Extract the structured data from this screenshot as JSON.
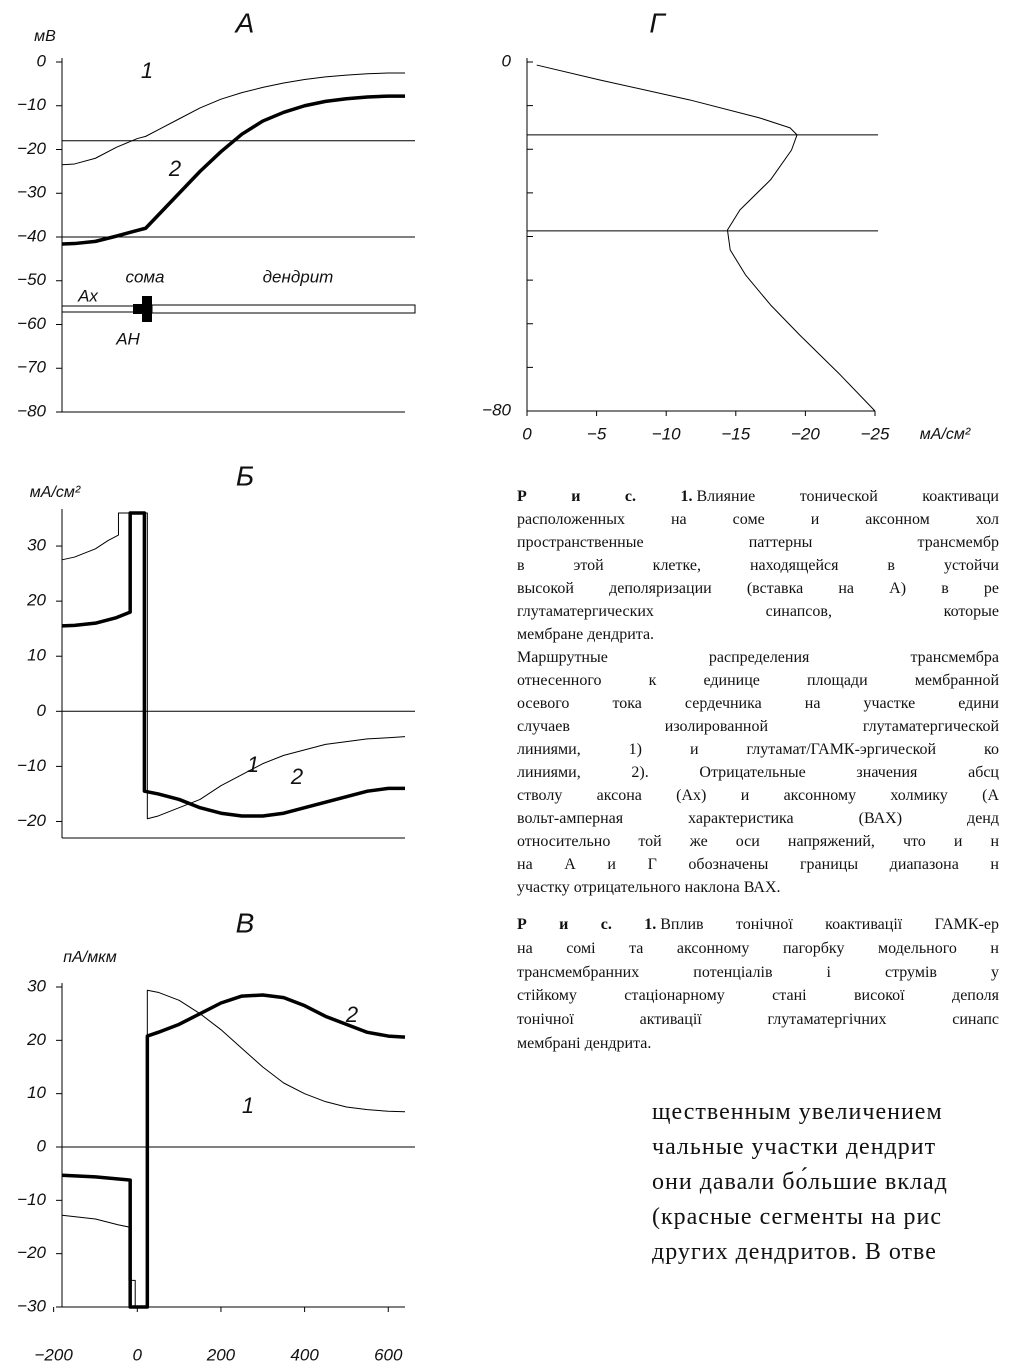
{
  "chart_data": [
    {
      "type": "line",
      "title": "А",
      "y_label": "мВ",
      "xlim": [
        -180,
        640
      ],
      "ylim": [
        -80,
        0
      ],
      "yticks": [
        0,
        {
          "value": -10,
          "label": "−10"
        },
        {
          "value": -20,
          "label": "−20"
        },
        {
          "value": -30,
          "label": "−30"
        },
        {
          "value": -40,
          "label": "−40"
        },
        {
          "value": -50,
          "label": "−50"
        },
        {
          "value": -60,
          "label": "−60"
        },
        {
          "value": -70,
          "label": "−70"
        },
        {
          "value": -80,
          "label": "−80"
        }
      ],
      "hlines": [
        -18,
        -40
      ],
      "annotations": [
        "сома",
        "дендрит",
        "Ах",
        "АН"
      ],
      "series": [
        {
          "name": "1",
          "color": "#000000",
          "line_width": 1,
          "x": [
            -180,
            -150,
            -100,
            -50,
            0,
            20,
            50,
            100,
            150,
            200,
            250,
            300,
            350,
            400,
            450,
            500,
            550,
            600,
            640
          ],
          "values": [
            -23.5,
            -23.3,
            -22,
            -19.5,
            -17.5,
            -17,
            -15.5,
            -13,
            -10.5,
            -8.5,
            -7,
            -5.8,
            -4.8,
            -4,
            -3.4,
            -3,
            -2.7,
            -2.5,
            -2.5
          ]
        },
        {
          "name": "2",
          "color": "#000000",
          "line_width": 3.5,
          "x": [
            -180,
            -150,
            -100,
            -50,
            0,
            20,
            50,
            100,
            150,
            200,
            250,
            300,
            350,
            400,
            450,
            500,
            550,
            600,
            640
          ],
          "values": [
            -41.6,
            -41.5,
            -41,
            -39.8,
            -38.5,
            -38,
            -35,
            -30,
            -25,
            -20.5,
            -16.5,
            -13.5,
            -11.5,
            -10,
            -9,
            -8.4,
            -8,
            -7.8,
            -7.8
          ]
        }
      ]
    },
    {
      "type": "line",
      "title": "Б",
      "y_label": "мА/см²",
      "xlim": [
        -180,
        640
      ],
      "ylim": [
        -23,
        36
      ],
      "yticks": [
        30,
        20,
        10,
        0,
        {
          "value": -10,
          "label": "−10"
        },
        {
          "value": -20,
          "label": "−20"
        }
      ],
      "hlines": [
        0
      ],
      "series": [
        {
          "name": "1",
          "color": "#000000",
          "line_width": 1,
          "x": [
            -180,
            -150,
            -100,
            -70,
            -45,
            -45,
            24,
            24,
            50,
            100,
            150,
            200,
            250,
            300,
            350,
            400,
            450,
            500,
            550,
            600,
            640
          ],
          "values": [
            27.5,
            28,
            29.5,
            31,
            32,
            36,
            36,
            -19.5,
            -19,
            -17.5,
            -16,
            -13.5,
            -11.5,
            -9.5,
            -8,
            -7,
            -6,
            -5.5,
            -5,
            -4.8,
            -4.6
          ]
        },
        {
          "name": "2",
          "color": "#000000",
          "line_width": 3.5,
          "x": [
            -180,
            -150,
            -100,
            -50,
            -17,
            -17,
            17,
            17,
            50,
            100,
            150,
            200,
            250,
            300,
            350,
            400,
            450,
            500,
            550,
            600,
            640
          ],
          "values": [
            15.5,
            15.6,
            16,
            17,
            18,
            36,
            36,
            -14.5,
            -15,
            -16,
            -17.5,
            -18.5,
            -19,
            -19,
            -18.5,
            -17.5,
            -16.5,
            -15.5,
            -14.5,
            -14,
            -14
          ]
        }
      ]
    },
    {
      "type": "line",
      "title": "В",
      "y_label": "пА/мкм",
      "xlim": [
        -180,
        640
      ],
      "ylim": [
        -30,
        30
      ],
      "yticks": [
        30,
        20,
        10,
        0,
        {
          "value": -10,
          "label": "−10"
        },
        {
          "value": -20,
          "label": "−20"
        },
        {
          "value": -30,
          "label": "−30"
        }
      ],
      "xticks": [
        {
          "value": -200,
          "label": "−200"
        },
        0,
        200,
        400,
        600
      ],
      "hlines": [
        0
      ],
      "series": [
        {
          "name": "2",
          "color": "#000000",
          "line_width": 3.5,
          "x": [
            -180,
            -100,
            -17,
            -17,
            24,
            24,
            50,
            100,
            150,
            200,
            250,
            300,
            350,
            400,
            450,
            500,
            550,
            600,
            640
          ],
          "values": [
            -5.3,
            -5.6,
            -6.2,
            -30,
            -30,
            20.8,
            21.5,
            23,
            25,
            27,
            28.3,
            28.5,
            28,
            26.5,
            24.5,
            23,
            21.5,
            20.8,
            20.6
          ]
        },
        {
          "name": "1",
          "color": "#000000",
          "line_width": 1,
          "x": [
            -180,
            -100,
            -45,
            -20,
            -20,
            -5,
            -5,
            24,
            24,
            50,
            100,
            150,
            200,
            250,
            300,
            350,
            400,
            450,
            500,
            550,
            600,
            640
          ],
          "values": [
            -12.8,
            -13.5,
            -14.6,
            -15,
            -25,
            -25,
            -30,
            -30,
            29.4,
            29,
            27.5,
            25,
            22,
            18.5,
            15,
            12,
            10,
            8.5,
            7.5,
            7,
            6.7,
            6.6
          ]
        }
      ]
    },
    {
      "type": "line",
      "title": "Г",
      "x_label": "мА/см²",
      "xlim": [
        0,
        -25
      ],
      "ylim": [
        -80,
        0
      ],
      "xticks": [
        0,
        {
          "value": -5,
          "label": "−5"
        },
        {
          "value": -10,
          "label": "−10"
        },
        {
          "value": -15,
          "label": "−15"
        },
        {
          "value": -20,
          "label": "−20"
        },
        {
          "value": -25,
          "label": "−25"
        }
      ],
      "yticks": [
        0,
        {
          "value": -80,
          "label": "−80"
        }
      ],
      "yminor": [
        -70,
        -60,
        -50,
        -40,
        -30,
        -20,
        -10
      ],
      "hlines": [
        -16.7,
        -38.7
      ],
      "series": [
        {
          "color": "#000000",
          "line_width": 1,
          "x": [
            -0.7,
            -5.2,
            -11.7,
            -16.7,
            -18.9,
            -19.4,
            -19,
            -17.5,
            -15.3,
            -14.4,
            -14.6,
            -15.7,
            -17.5,
            -19.6,
            -22.5,
            -25
          ],
          "values": [
            -0.7,
            -4.1,
            -8.7,
            -12.8,
            -15.1,
            -16.7,
            -20.2,
            -27,
            -33.9,
            -38.5,
            -43.1,
            -48.8,
            -55.7,
            -62.6,
            -71.7,
            -80
          ]
        }
      ]
    }
  ],
  "caption_ru": {
    "label": "Р и с. 1.",
    "lines": [
      "Влияние тонической коактиваци",
      "расположенных на соме и аксонном хол",
      "пространственные паттерны трансмембр",
      "в этой клетке, находящейся в устойчи",
      "высокой деполяризации (вставка на А) в ре",
      "глутаматергических синапсов, которые",
      "мембране дендрита.",
      "Маршрутные распределения трансмембра",
      "отнесенного к единице площади мембранной",
      "осевого тока сердечника на участке едини",
      "случаев изолированной глутаматергической",
      "линиями, 1) и глутамат/ГАМК-эргической ко",
      "линиями, 2). Отрицательные значения абсц",
      "стволу аксона (Ах) и аксонному холмику (А",
      "вольт-амперная характеристика (ВАХ) денд",
      "относительно той же оси напряжений, что и н",
      "на А и Г обозначены границы диапазона н",
      "участку отрицательного наклона ВАХ."
    ]
  },
  "caption_uk": {
    "label": "Р и с. 1.",
    "lines": [
      "Вплив тонічної коактивації ГАМК-ер",
      "на сомі та аксонному пагорбку модельного н",
      "трансмембранних потенціалів і струмів у",
      "стійкому стаціонарному стані високої деполя",
      "тонічної активації глутаматергічних синапс",
      "мембрані дендрита."
    ]
  },
  "body": {
    "lines": [
      "щественным увеличением",
      "чальные участки дендрит",
      "они давали бо́льшие вклад",
      "(красные сегменты на рис",
      "других дендритов. В отве"
    ]
  }
}
